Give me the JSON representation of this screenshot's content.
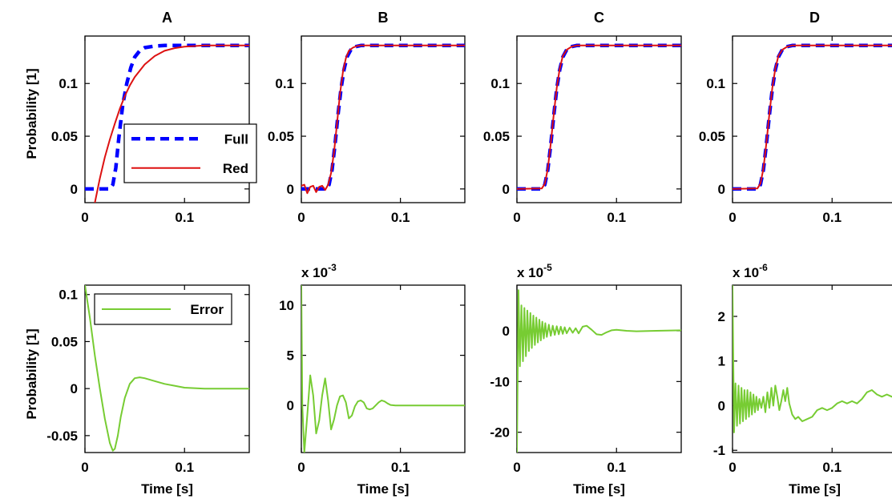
{
  "figure": {
    "top_ylabel": "Probability [1]",
    "bottom_ylabel": "Probability [1]",
    "xlabel": "Time [s]"
  },
  "colors": {
    "full": "#0000ff",
    "red": "#dd1111",
    "error": "#77cc33",
    "axes": "#000000"
  },
  "chart_data": [
    {
      "id": "A-top",
      "type": "line",
      "title": "A",
      "xlim": [
        0,
        0.165
      ],
      "ylim": [
        -0.013,
        0.145
      ],
      "xticks": [
        {
          "v": 0,
          "label": "0"
        },
        {
          "v": 0.1,
          "label": "0.1"
        }
      ],
      "yticks": [
        {
          "v": 0,
          "label": "0"
        },
        {
          "v": 0.05,
          "label": "0.05"
        },
        {
          "v": 0.1,
          "label": "0.1"
        }
      ],
      "ylabel": "Probability [1]",
      "xlabel": "",
      "legend": {
        "position": "center-right",
        "entries": [
          {
            "series": "Full",
            "label": "Full"
          },
          {
            "series": "Red",
            "label": "Red"
          }
        ]
      },
      "series": [
        {
          "name": "Full",
          "style": "dashed",
          "color": "#0000ff",
          "x": [
            0,
            0.025,
            0.028,
            0.031,
            0.034,
            0.038,
            0.042,
            0.046,
            0.05,
            0.055,
            0.06,
            0.07,
            0.08,
            0.1,
            0.165
          ],
          "y": [
            0,
            0,
            0.004,
            0.02,
            0.048,
            0.08,
            0.1,
            0.115,
            0.125,
            0.131,
            0.134,
            0.1355,
            0.136,
            0.136,
            0.136
          ]
        },
        {
          "name": "Red",
          "style": "solid",
          "color": "#dd1111",
          "x": [
            0.01,
            0.015,
            0.02,
            0.025,
            0.03,
            0.035,
            0.04,
            0.045,
            0.05,
            0.06,
            0.07,
            0.08,
            0.09,
            0.1,
            0.12,
            0.14,
            0.165
          ],
          "y": [
            -0.013,
            0.01,
            0.03,
            0.047,
            0.062,
            0.076,
            0.088,
            0.098,
            0.106,
            0.118,
            0.126,
            0.131,
            0.1335,
            0.135,
            0.136,
            0.136,
            0.136
          ]
        }
      ]
    },
    {
      "id": "B-top",
      "type": "line",
      "title": "B",
      "xlim": [
        0,
        0.165
      ],
      "ylim": [
        -0.013,
        0.145
      ],
      "xticks": [
        {
          "v": 0,
          "label": "0"
        },
        {
          "v": 0.1,
          "label": "0.1"
        }
      ],
      "yticks": [
        {
          "v": 0,
          "label": "0"
        },
        {
          "v": 0.05,
          "label": "0.05"
        },
        {
          "v": 0.1,
          "label": "0.1"
        }
      ],
      "series": [
        {
          "name": "Full",
          "style": "dashed",
          "color": "#0000ff",
          "x": [
            0,
            0.025,
            0.028,
            0.031,
            0.034,
            0.037,
            0.04,
            0.043,
            0.046,
            0.05,
            0.055,
            0.06,
            0.07,
            0.165
          ],
          "y": [
            0,
            0,
            0.004,
            0.018,
            0.042,
            0.07,
            0.095,
            0.113,
            0.125,
            0.132,
            0.135,
            0.136,
            0.136,
            0.136
          ]
        },
        {
          "name": "Red",
          "style": "solid",
          "color": "#dd1111",
          "x": [
            0,
            0.003,
            0.006,
            0.009,
            0.012,
            0.015,
            0.018,
            0.021,
            0.024,
            0.027,
            0.03,
            0.033,
            0.036,
            0.039,
            0.042,
            0.045,
            0.048,
            0.052,
            0.056,
            0.06,
            0.07,
            0.165
          ],
          "y": [
            0.003,
            0.004,
            -0.004,
            0.002,
            0.003,
            -0.003,
            0.002,
            0.003,
            -0.001,
            0.004,
            0.015,
            0.035,
            0.062,
            0.09,
            0.111,
            0.124,
            0.131,
            0.134,
            0.1355,
            0.136,
            0.136,
            0.136
          ]
        }
      ]
    },
    {
      "id": "C-top",
      "type": "line",
      "title": "C",
      "xlim": [
        0,
        0.165
      ],
      "ylim": [
        -0.013,
        0.145
      ],
      "xticks": [
        {
          "v": 0,
          "label": "0"
        },
        {
          "v": 0.1,
          "label": "0.1"
        }
      ],
      "yticks": [
        {
          "v": 0,
          "label": "0"
        },
        {
          "v": 0.05,
          "label": "0.05"
        },
        {
          "v": 0.1,
          "label": "0.1"
        }
      ],
      "series": [
        {
          "name": "Full",
          "style": "dashed",
          "color": "#0000ff",
          "x": [
            0,
            0.025,
            0.028,
            0.031,
            0.034,
            0.037,
            0.04,
            0.043,
            0.046,
            0.05,
            0.055,
            0.06,
            0.07,
            0.165
          ],
          "y": [
            0,
            0,
            0.004,
            0.018,
            0.042,
            0.07,
            0.095,
            0.113,
            0.125,
            0.132,
            0.135,
            0.136,
            0.136,
            0.136
          ]
        },
        {
          "name": "Red",
          "style": "solid",
          "color": "#dd1111",
          "x": [
            0,
            0.025,
            0.028,
            0.031,
            0.034,
            0.037,
            0.04,
            0.043,
            0.046,
            0.05,
            0.055,
            0.06,
            0.07,
            0.165
          ],
          "y": [
            0,
            0.0005,
            0.005,
            0.019,
            0.043,
            0.071,
            0.096,
            0.114,
            0.126,
            0.132,
            0.135,
            0.136,
            0.136,
            0.136
          ]
        }
      ]
    },
    {
      "id": "D-top",
      "type": "line",
      "title": "D",
      "xlim": [
        0,
        0.165
      ],
      "ylim": [
        -0.013,
        0.145
      ],
      "xticks": [
        {
          "v": 0,
          "label": "0"
        },
        {
          "v": 0.1,
          "label": "0.1"
        }
      ],
      "yticks": [
        {
          "v": 0,
          "label": "0"
        },
        {
          "v": 0.05,
          "label": "0.05"
        },
        {
          "v": 0.1,
          "label": "0.1"
        }
      ],
      "series": [
        {
          "name": "Full",
          "style": "dashed",
          "color": "#0000ff",
          "x": [
            0,
            0.025,
            0.028,
            0.031,
            0.034,
            0.037,
            0.04,
            0.043,
            0.046,
            0.05,
            0.055,
            0.06,
            0.07,
            0.165
          ],
          "y": [
            0,
            0,
            0.004,
            0.018,
            0.042,
            0.07,
            0.095,
            0.113,
            0.125,
            0.132,
            0.135,
            0.136,
            0.136,
            0.136
          ]
        },
        {
          "name": "Red",
          "style": "solid",
          "color": "#dd1111",
          "x": [
            0,
            0.025,
            0.028,
            0.031,
            0.034,
            0.037,
            0.04,
            0.043,
            0.046,
            0.05,
            0.055,
            0.06,
            0.07,
            0.165
          ],
          "y": [
            0,
            0.0005,
            0.005,
            0.019,
            0.043,
            0.071,
            0.096,
            0.114,
            0.126,
            0.132,
            0.135,
            0.136,
            0.136,
            0.136
          ]
        }
      ]
    },
    {
      "id": "A-bottom",
      "type": "line",
      "xlim": [
        0,
        0.165
      ],
      "ylim": [
        -0.068,
        0.11
      ],
      "xticks": [
        {
          "v": 0,
          "label": "0"
        },
        {
          "v": 0.1,
          "label": "0.1"
        }
      ],
      "yticks": [
        {
          "v": -0.05,
          "label": "-0.05"
        },
        {
          "v": 0,
          "label": "0"
        },
        {
          "v": 0.05,
          "label": "0.05"
        },
        {
          "v": 0.1,
          "label": "0.1"
        }
      ],
      "ylabel": "Probability [1]",
      "xlabel": "Time [s]",
      "legend": {
        "position": "top-right",
        "entries": [
          {
            "series": "Error",
            "label": "Error"
          }
        ]
      },
      "series": [
        {
          "name": "Error",
          "style": "solid",
          "color": "#77cc33",
          "x": [
            0,
            0.005,
            0.01,
            0.015,
            0.02,
            0.025,
            0.028,
            0.03,
            0.033,
            0.036,
            0.04,
            0.045,
            0.05,
            0.055,
            0.06,
            0.07,
            0.08,
            0.09,
            0.1,
            0.12,
            0.14,
            0.165
          ],
          "y": [
            0.11,
            0.075,
            0.035,
            0.0,
            -0.032,
            -0.058,
            -0.066,
            -0.064,
            -0.05,
            -0.03,
            -0.01,
            0.005,
            0.011,
            0.012,
            0.011,
            0.008,
            0.005,
            0.003,
            0.001,
            0.0,
            0.0,
            0.0
          ]
        }
      ]
    },
    {
      "id": "B-bottom",
      "type": "line",
      "multiplier": "x 10",
      "exponent": "-3",
      "xlim": [
        0,
        0.165
      ],
      "ylim": [
        -4.7,
        12
      ],
      "xticks": [
        {
          "v": 0,
          "label": "0"
        },
        {
          "v": 0.1,
          "label": "0.1"
        }
      ],
      "yticks": [
        {
          "v": 0,
          "label": "0"
        },
        {
          "v": 5,
          "label": "5"
        },
        {
          "v": 10,
          "label": "10"
        }
      ],
      "xlabel": "Time [s]",
      "series": [
        {
          "name": "Error",
          "style": "solid",
          "color": "#77cc33",
          "x": [
            0,
            0.001,
            0.003,
            0.006,
            0.009,
            0.012,
            0.015,
            0.018,
            0.021,
            0.024,
            0.027,
            0.03,
            0.033,
            0.036,
            0.039,
            0.042,
            0.045,
            0.048,
            0.051,
            0.054,
            0.057,
            0.06,
            0.063,
            0.066,
            0.069,
            0.072,
            0.075,
            0.078,
            0.081,
            0.084,
            0.087,
            0.09,
            0.095,
            0.1,
            0.12,
            0.14,
            0.165
          ],
          "y": [
            12,
            0,
            -4.7,
            -1,
            3.0,
            1.0,
            -2.8,
            -1.5,
            1.0,
            2.7,
            0.5,
            -2.4,
            -1.4,
            0.0,
            0.9,
            1.0,
            0.3,
            -1.3,
            -1.0,
            -0.1,
            0.4,
            0.5,
            0.3,
            -0.3,
            -0.4,
            -0.3,
            0.0,
            0.3,
            0.5,
            0.4,
            0.2,
            0.05,
            0.0,
            0.0,
            0.0,
            0.0,
            0.0
          ]
        }
      ]
    },
    {
      "id": "C-bottom",
      "type": "line",
      "multiplier": "x 10",
      "exponent": "-5",
      "xlim": [
        0,
        0.165
      ],
      "ylim": [
        -24,
        9
      ],
      "xticks": [
        {
          "v": 0,
          "label": "0"
        },
        {
          "v": 0.1,
          "label": "0.1"
        }
      ],
      "yticks": [
        {
          "v": -20,
          "label": "-20"
        },
        {
          "v": -10,
          "label": "-10"
        },
        {
          "v": 0,
          "label": "0"
        }
      ],
      "xlabel": "Time [s]",
      "series": [
        {
          "name": "Error",
          "style": "solid",
          "color": "#77cc33",
          "x": [
            0,
            0.0015,
            0.003,
            0.0045,
            0.006,
            0.0075,
            0.009,
            0.0105,
            0.012,
            0.0135,
            0.015,
            0.0165,
            0.018,
            0.0195,
            0.021,
            0.0225,
            0.024,
            0.0255,
            0.027,
            0.0285,
            0.03,
            0.032,
            0.034,
            0.036,
            0.038,
            0.04,
            0.042,
            0.044,
            0.046,
            0.048,
            0.05,
            0.053,
            0.056,
            0.059,
            0.062,
            0.066,
            0.07,
            0.075,
            0.08,
            0.085,
            0.09,
            0.095,
            0.1,
            0.11,
            0.12,
            0.14,
            0.165
          ],
          "y": [
            -24,
            8,
            -7,
            5,
            -6,
            4.5,
            -5,
            4,
            -4,
            3.5,
            -3.4,
            3.0,
            -2.8,
            2.6,
            -2.3,
            2.2,
            -1.9,
            1.8,
            -1.5,
            1.5,
            -1.2,
            1.2,
            -1.0,
            1.0,
            -0.8,
            0.9,
            -0.7,
            0.8,
            -0.6,
            0.7,
            -0.5,
            0.6,
            -0.4,
            0.5,
            -0.5,
            0.8,
            1.0,
            0.2,
            -0.7,
            -0.8,
            -0.3,
            0.1,
            0.2,
            0.0,
            -0.1,
            0.0,
            0.1
          ]
        }
      ]
    },
    {
      "id": "D-bottom",
      "type": "line",
      "multiplier": "x 10",
      "exponent": "-6",
      "xlim": [
        0,
        0.165
      ],
      "ylim": [
        -1.05,
        2.7
      ],
      "xticks": [
        {
          "v": 0,
          "label": "0"
        },
        {
          "v": 0.1,
          "label": "0.1"
        }
      ],
      "yticks": [
        {
          "v": -1,
          "label": "-1"
        },
        {
          "v": 0,
          "label": "0"
        },
        {
          "v": 1,
          "label": "1"
        },
        {
          "v": 2,
          "label": "2"
        }
      ],
      "xlabel": "Time [s]",
      "series": [
        {
          "name": "Error",
          "style": "solid",
          "color": "#77cc33",
          "x": [
            0,
            0.0015,
            0.003,
            0.0045,
            0.006,
            0.0075,
            0.009,
            0.0105,
            0.012,
            0.0135,
            0.015,
            0.0165,
            0.018,
            0.0195,
            0.021,
            0.0225,
            0.024,
            0.0255,
            0.027,
            0.029,
            0.031,
            0.033,
            0.035,
            0.037,
            0.039,
            0.041,
            0.043,
            0.045,
            0.047,
            0.049,
            0.051,
            0.053,
            0.055,
            0.057,
            0.06,
            0.063,
            0.066,
            0.07,
            0.075,
            0.08,
            0.085,
            0.09,
            0.095,
            0.1,
            0.105,
            0.11,
            0.115,
            0.12,
            0.125,
            0.13,
            0.135,
            0.14,
            0.145,
            0.15,
            0.155,
            0.16,
            0.165
          ],
          "y": [
            2.7,
            -0.6,
            0.5,
            -0.45,
            0.45,
            -0.4,
            0.4,
            -0.35,
            0.35,
            -0.3,
            0.35,
            -0.25,
            0.3,
            -0.2,
            0.25,
            -0.15,
            0.2,
            -0.1,
            0.15,
            -0.05,
            0.2,
            -0.15,
            0.3,
            -0.05,
            0.4,
            0.0,
            0.45,
            0.2,
            -0.1,
            0.1,
            0.35,
            0.1,
            0.4,
            0.05,
            -0.2,
            -0.3,
            -0.25,
            -0.35,
            -0.3,
            -0.25,
            -0.1,
            -0.05,
            -0.1,
            -0.05,
            0.05,
            0.1,
            0.05,
            0.1,
            0.05,
            0.15,
            0.3,
            0.35,
            0.25,
            0.2,
            0.25,
            0.2,
            0.2
          ]
        }
      ]
    }
  ]
}
